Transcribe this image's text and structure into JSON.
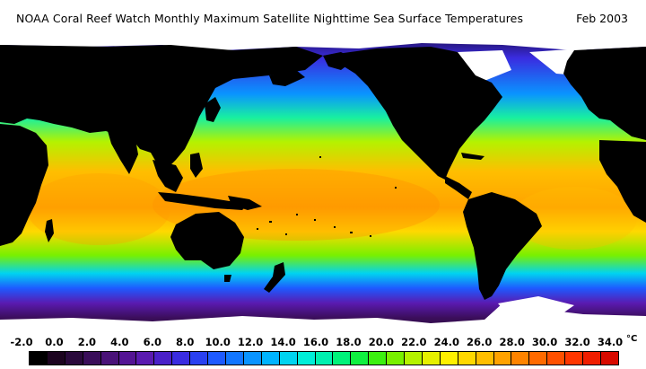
{
  "title": "NOAA Coral Reef Watch Monthly Maximum Satellite Nighttime Sea Surface Temperatures",
  "date": "Feb 2003",
  "unit": "°C",
  "scale": {
    "ticks": [
      "-2.0",
      "0.0",
      "2.0",
      "4.0",
      "6.0",
      "8.0",
      "10.0",
      "12.0",
      "14.0",
      "16.0",
      "18.0",
      "20.0",
      "22.0",
      "24.0",
      "26.0",
      "28.0",
      "30.0",
      "32.0",
      "34.0"
    ],
    "colors": [
      "#000000",
      "#1c0420",
      "#2a0a3c",
      "#3a0e5a",
      "#4a1278",
      "#541494",
      "#5a1ab0",
      "#4a20c8",
      "#3a2ce0",
      "#2a40f0",
      "#1e5aff",
      "#1276ff",
      "#0a94ff",
      "#00b4ff",
      "#00d4f0",
      "#00eed8",
      "#00f0b0",
      "#00f27a",
      "#10f040",
      "#3cf010",
      "#78f000",
      "#b4f200",
      "#e6f000",
      "#fff000",
      "#ffd800",
      "#ffbe00",
      "#ffa200",
      "#ff8400",
      "#ff6a00",
      "#ff5000",
      "#ff3600",
      "#f01e00",
      "#d80a00"
    ]
  },
  "map": {
    "ocean_colors": {
      "cold_south": "#3a1480",
      "south_mid": "#2a60ff",
      "temperate": "#18f0a0",
      "warm": "#ffd800",
      "hot": "#ffa200",
      "north_cold": "#2a40f0",
      "arctic": "#1c0a4a"
    },
    "land_color": "#000000",
    "ice_color": "#ffffff"
  }
}
